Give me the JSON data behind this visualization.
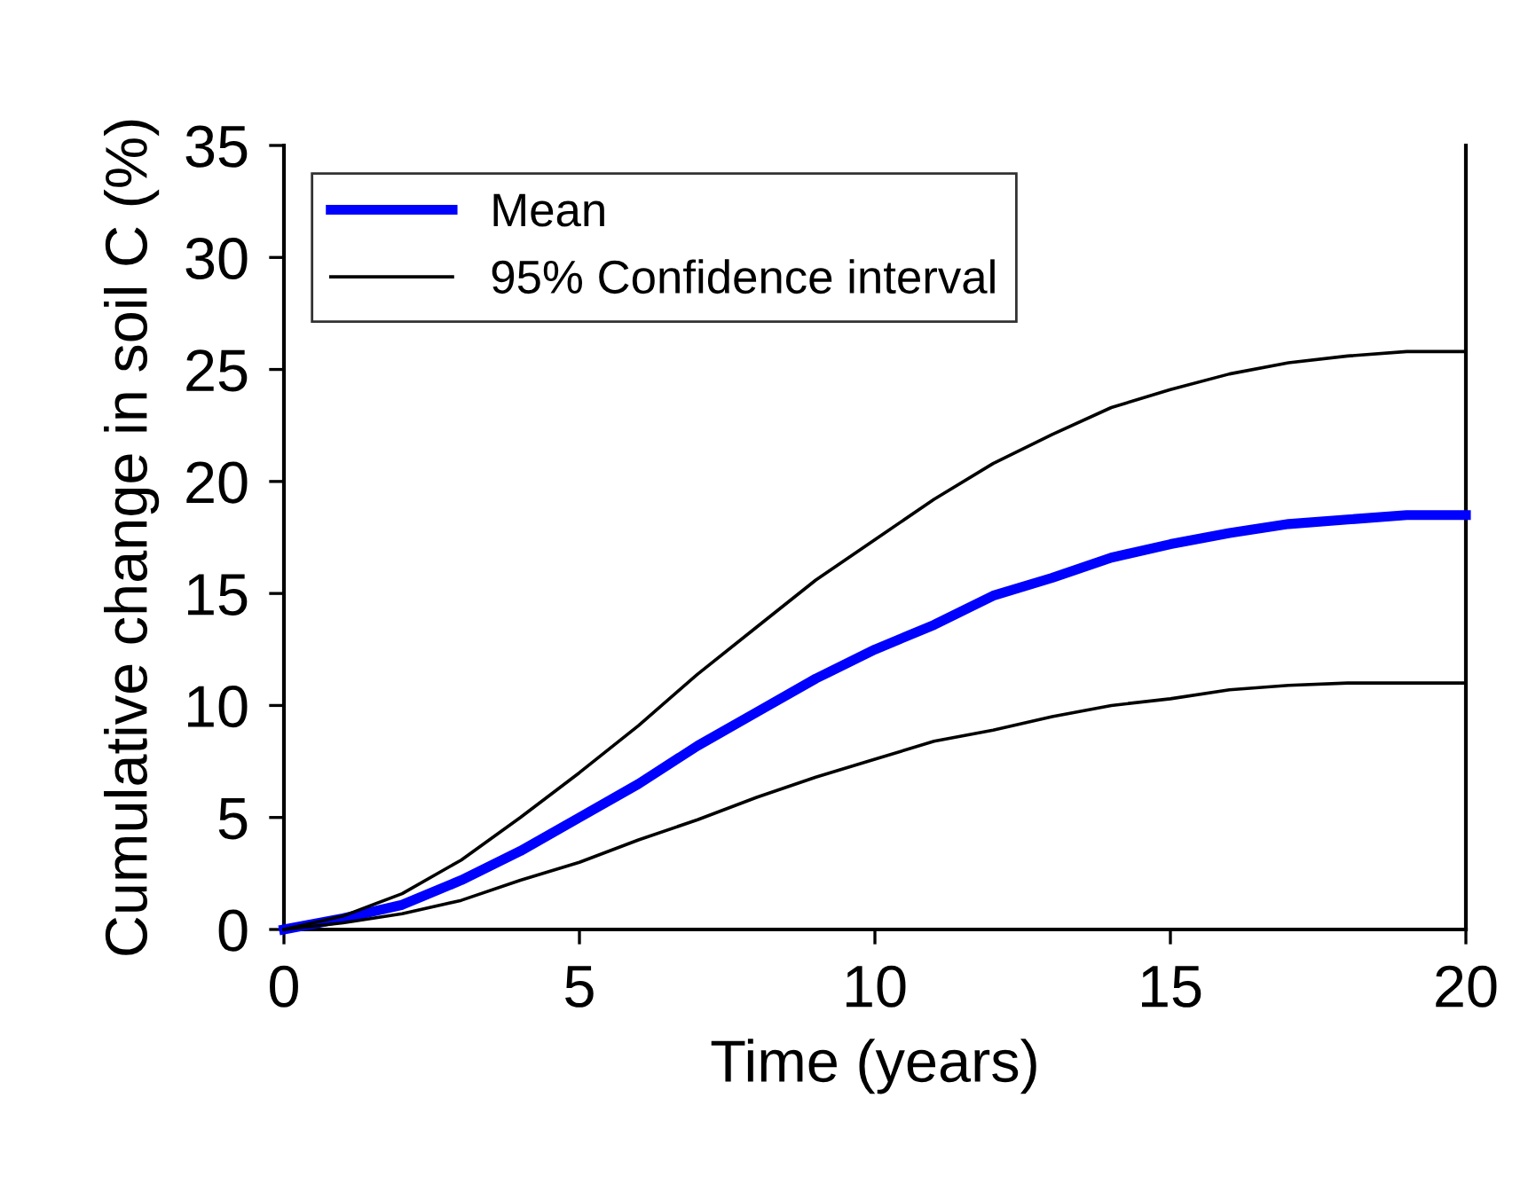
{
  "chart_data": {
    "type": "line",
    "xlabel": "Time (years)",
    "ylabel": "Cumulative change in soil C (%)",
    "x": [
      0,
      1,
      2,
      3,
      4,
      5,
      6,
      7,
      8,
      9,
      10,
      11,
      12,
      13,
      14,
      15,
      16,
      17,
      18,
      19,
      20
    ],
    "series": [
      {
        "name": "Mean",
        "color": "#0000ff",
        "values": [
          0,
          0.5,
          1.1,
          2.2,
          3.5,
          5.0,
          6.5,
          8.2,
          9.7,
          11.2,
          12.5,
          13.6,
          14.9,
          15.7,
          16.6,
          17.2,
          17.7,
          18.1,
          18.3,
          18.5,
          18.5
        ]
      },
      {
        "name": "95% Confidence interval",
        "color": "#000000",
        "values": [
          0,
          0.6,
          1.6,
          3.1,
          5.0,
          7.0,
          9.1,
          11.4,
          13.5,
          15.6,
          17.4,
          19.2,
          20.8,
          22.1,
          23.3,
          24.1,
          24.8,
          25.3,
          25.6,
          25.8,
          25.8
        ]
      },
      {
        "color": "#000000",
        "values": [
          0,
          0.3,
          0.7,
          1.3,
          2.2,
          3.0,
          4.0,
          4.9,
          5.9,
          6.8,
          7.6,
          8.4,
          8.9,
          9.5,
          10.0,
          10.3,
          10.7,
          10.9,
          11.0,
          11.0,
          11.0
        ]
      }
    ],
    "xlim": [
      0,
      20
    ],
    "xticks": [
      0,
      5,
      10,
      15,
      20
    ],
    "ylim": [
      0,
      35
    ],
    "yticks": [
      0,
      5,
      10,
      15,
      20,
      25,
      30,
      35
    ],
    "grid": false,
    "legend": "top left",
    "marker": "none",
    "line_style": "solid"
  }
}
